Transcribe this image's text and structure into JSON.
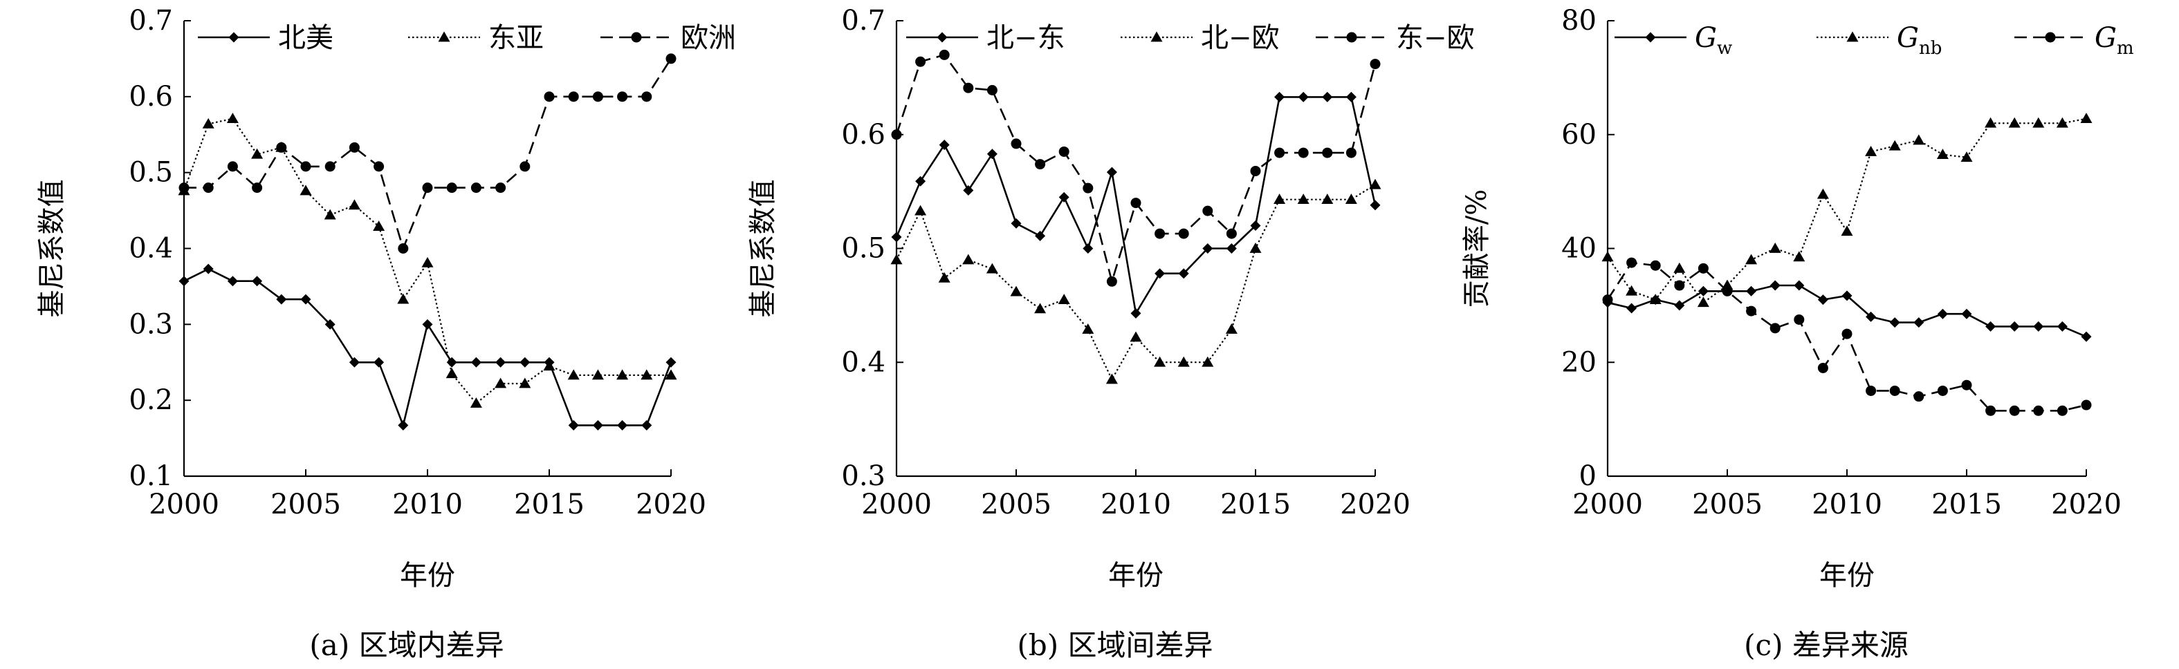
{
  "chart_data": [
    {
      "type": "line",
      "caption": "(a) 区域内差异",
      "xlabel": "年份",
      "ylabel": "基尼系数值",
      "xlim": [
        2000,
        2020
      ],
      "ylim": [
        0.1,
        0.7
      ],
      "xticks": [
        2000,
        2005,
        2010,
        2015,
        2020
      ],
      "xtick_labels": [
        "2000",
        "2005",
        "2010",
        "2015",
        "2020"
      ],
      "yticks": [
        0.1,
        0.2,
        0.3,
        0.4,
        0.5,
        0.6,
        0.7
      ],
      "ytick_labels": [
        "0.1",
        "0.2",
        "0.3",
        "0.4",
        "0.5",
        "0.6",
        "0.7"
      ],
      "grid": false,
      "legend_position": "top",
      "x": [
        2000,
        2001,
        2002,
        2003,
        2004,
        2005,
        2006,
        2007,
        2008,
        2009,
        2010,
        2011,
        2012,
        2013,
        2014,
        2015,
        2016,
        2017,
        2018,
        2019,
        2020
      ],
      "series": [
        {
          "name": "北美",
          "style": "solid",
          "marker": "diamond",
          "values": [
            0.357,
            0.373,
            0.357,
            0.357,
            0.333,
            0.333,
            0.3,
            0.25,
            0.25,
            0.167,
            0.3,
            0.25,
            0.25,
            0.25,
            0.25,
            0.25,
            0.167,
            0.167,
            0.167,
            0.167,
            0.25
          ]
        },
        {
          "name": "东亚",
          "style": "dotted",
          "marker": "triangle",
          "values": [
            0.476,
            0.564,
            0.571,
            0.524,
            0.533,
            0.476,
            0.444,
            0.457,
            0.429,
            0.333,
            0.381,
            0.235,
            0.196,
            0.222,
            0.222,
            0.245,
            0.233,
            0.233,
            0.233,
            0.233,
            0.233
          ]
        },
        {
          "name": "欧洲",
          "style": "dashed",
          "marker": "circle",
          "values": [
            0.48,
            0.48,
            0.508,
            0.48,
            0.533,
            0.508,
            0.508,
            0.533,
            0.508,
            0.4,
            0.48,
            0.48,
            0.48,
            0.48,
            0.508,
            0.6,
            0.6,
            0.6,
            0.6,
            0.6,
            0.65
          ]
        }
      ]
    },
    {
      "type": "line",
      "caption": "(b) 区域间差异",
      "xlabel": "年份",
      "ylabel": "基尼系数值",
      "xlim": [
        2000,
        2020
      ],
      "ylim": [
        0.3,
        0.7
      ],
      "xticks": [
        2000,
        2005,
        2010,
        2015,
        2020
      ],
      "xtick_labels": [
        "2000",
        "2005",
        "2010",
        "2015",
        "2020"
      ],
      "yticks": [
        0.3,
        0.4,
        0.5,
        0.6,
        0.7
      ],
      "ytick_labels": [
        "0.3",
        "0.4",
        "0.5",
        "0.6",
        "0.7"
      ],
      "grid": false,
      "legend_position": "top",
      "x": [
        2000,
        2001,
        2002,
        2003,
        2004,
        2005,
        2006,
        2007,
        2008,
        2009,
        2010,
        2011,
        2012,
        2013,
        2014,
        2015,
        2016,
        2017,
        2018,
        2019,
        2020
      ],
      "series": [
        {
          "name": "北−东",
          "style": "solid",
          "marker": "diamond",
          "values": [
            0.51,
            0.559,
            0.591,
            0.551,
            0.583,
            0.522,
            0.511,
            0.545,
            0.5,
            0.567,
            0.443,
            0.478,
            0.478,
            0.5,
            0.5,
            0.52,
            0.633,
            0.633,
            0.633,
            0.633,
            0.538
          ]
        },
        {
          "name": "北−欧",
          "style": "dotted",
          "marker": "triangle",
          "values": [
            0.49,
            0.533,
            0.474,
            0.49,
            0.482,
            0.462,
            0.447,
            0.455,
            0.429,
            0.385,
            0.422,
            0.4,
            0.4,
            0.4,
            0.429,
            0.5,
            0.543,
            0.543,
            0.543,
            0.543,
            0.556
          ]
        },
        {
          "name": "东−欧",
          "style": "dashed",
          "marker": "circle",
          "values": [
            0.6,
            0.664,
            0.67,
            0.641,
            0.639,
            0.592,
            0.574,
            0.585,
            0.553,
            0.471,
            0.54,
            0.513,
            0.513,
            0.533,
            0.513,
            0.568,
            0.584,
            0.584,
            0.584,
            0.584,
            0.662
          ]
        }
      ]
    },
    {
      "type": "line",
      "caption": "(c) 差异来源",
      "xlabel": "年份",
      "ylabel": "贡献率/%",
      "xlim": [
        2000,
        2020
      ],
      "ylim": [
        0,
        80
      ],
      "xticks": [
        2000,
        2005,
        2010,
        2015,
        2020
      ],
      "xtick_labels": [
        "2000",
        "2005",
        "2010",
        "2015",
        "2020"
      ],
      "yticks": [
        0,
        20,
        40,
        60,
        80
      ],
      "ytick_labels": [
        "0",
        "20",
        "40",
        "60",
        "80"
      ],
      "grid": false,
      "legend_position": "top",
      "x": [
        2000,
        2001,
        2002,
        2003,
        2004,
        2005,
        2006,
        2007,
        2008,
        2009,
        2010,
        2011,
        2012,
        2013,
        2014,
        2015,
        2016,
        2017,
        2018,
        2019,
        2020
      ],
      "series": [
        {
          "name": "G_w",
          "label_main": "G",
          "label_sub": "w",
          "style": "solid",
          "marker": "diamond",
          "values": [
            30.5,
            29.5,
            31,
            30,
            32.5,
            32.5,
            32.5,
            33.5,
            33.5,
            31,
            31.7,
            28,
            27,
            27,
            28.5,
            28.5,
            26.3,
            26.3,
            26.3,
            26.3,
            24.5
          ]
        },
        {
          "name": "G_nb",
          "label_main": "G",
          "label_sub": "nb",
          "style": "dotted",
          "marker": "triangle",
          "values": [
            38.5,
            32.5,
            31,
            36.5,
            30.5,
            33.5,
            38,
            40,
            38.5,
            49.5,
            43,
            57,
            58,
            59,
            56.5,
            56,
            62,
            62,
            62,
            62,
            62.8
          ]
        },
        {
          "name": "G_m",
          "label_main": "G",
          "label_sub": "m",
          "style": "dashed",
          "marker": "circle",
          "values": [
            31,
            37.5,
            37,
            33.5,
            36.5,
            32.5,
            29,
            26,
            27.5,
            19,
            25,
            15,
            15,
            14,
            15,
            16,
            11.5,
            11.5,
            11.5,
            11.5,
            12.5
          ]
        }
      ]
    }
  ]
}
